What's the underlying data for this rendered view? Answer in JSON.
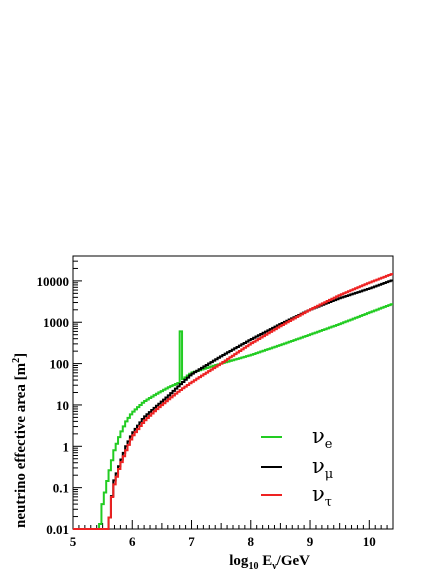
{
  "chart_data": {
    "type": "line",
    "step": true,
    "xlabel": {
      "main": "log",
      "sub1": "10",
      "mid": " E",
      "sub2": "ν",
      "tail": "/GeV"
    },
    "ylabel": {
      "main": "neutrino effective area [m",
      "sup": "2",
      "tail": "]"
    },
    "xlim": [
      5.0,
      10.4
    ],
    "ylim": [
      0.01,
      40000
    ],
    "y_scale": "log",
    "x_ticks": [
      "5",
      "6",
      "7",
      "8",
      "9",
      "10"
    ],
    "y_ticks": [
      "0.01",
      "0.1",
      "1",
      "10",
      "100",
      "1000",
      "10000"
    ],
    "legend_placement": "bottom-right",
    "series": [
      {
        "name": "ν_e",
        "symbol": "ν",
        "sub": "e",
        "color": "#22cc22",
        "points": [
          [
            5.0,
            0.01
          ],
          [
            5.45,
            0.01
          ],
          [
            5.5,
            0.04
          ],
          [
            5.6,
            0.2
          ],
          [
            5.7,
            0.8
          ],
          [
            5.8,
            2
          ],
          [
            5.9,
            4
          ],
          [
            6.0,
            6.5
          ],
          [
            6.2,
            12
          ],
          [
            6.4,
            18
          ],
          [
            6.6,
            26
          ],
          [
            6.78,
            34
          ],
          [
            6.8,
            600
          ],
          [
            6.85,
            600
          ],
          [
            6.86,
            42
          ],
          [
            7.0,
            60
          ],
          [
            7.5,
            100
          ],
          [
            8.0,
            160
          ],
          [
            8.5,
            280
          ],
          [
            9.0,
            500
          ],
          [
            9.5,
            900
          ],
          [
            10.0,
            1700
          ],
          [
            10.4,
            2800
          ]
        ]
      },
      {
        "name": "ν_μ",
        "symbol": "ν",
        "sub": "μ",
        "color": "#000000",
        "points": [
          [
            5.0,
            0.01
          ],
          [
            5.6,
            0.01
          ],
          [
            5.65,
            0.05
          ],
          [
            5.7,
            0.15
          ],
          [
            5.8,
            0.4
          ],
          [
            5.9,
            1
          ],
          [
            6.0,
            2
          ],
          [
            6.2,
            5
          ],
          [
            6.4,
            9
          ],
          [
            6.6,
            16
          ],
          [
            6.8,
            30
          ],
          [
            7.0,
            55
          ],
          [
            7.5,
            150
          ],
          [
            8.0,
            380
          ],
          [
            8.5,
            900
          ],
          [
            9.0,
            2000
          ],
          [
            9.5,
            3800
          ],
          [
            10.0,
            6500
          ],
          [
            10.4,
            10500
          ]
        ]
      },
      {
        "name": "ν_τ",
        "symbol": "ν",
        "sub": "τ",
        "color": "#ee2222",
        "points": [
          [
            5.0,
            0.01
          ],
          [
            5.6,
            0.01
          ],
          [
            5.65,
            0.05
          ],
          [
            5.7,
            0.12
          ],
          [
            5.8,
            0.35
          ],
          [
            5.9,
            0.8
          ],
          [
            6.0,
            1.7
          ],
          [
            6.2,
            4
          ],
          [
            6.4,
            7.5
          ],
          [
            6.6,
            13
          ],
          [
            6.8,
            22
          ],
          [
            7.0,
            35
          ],
          [
            7.5,
            100
          ],
          [
            8.0,
            300
          ],
          [
            8.5,
            800
          ],
          [
            9.0,
            2000
          ],
          [
            9.5,
            4500
          ],
          [
            10.0,
            9000
          ],
          [
            10.4,
            15000
          ]
        ]
      }
    ]
  }
}
